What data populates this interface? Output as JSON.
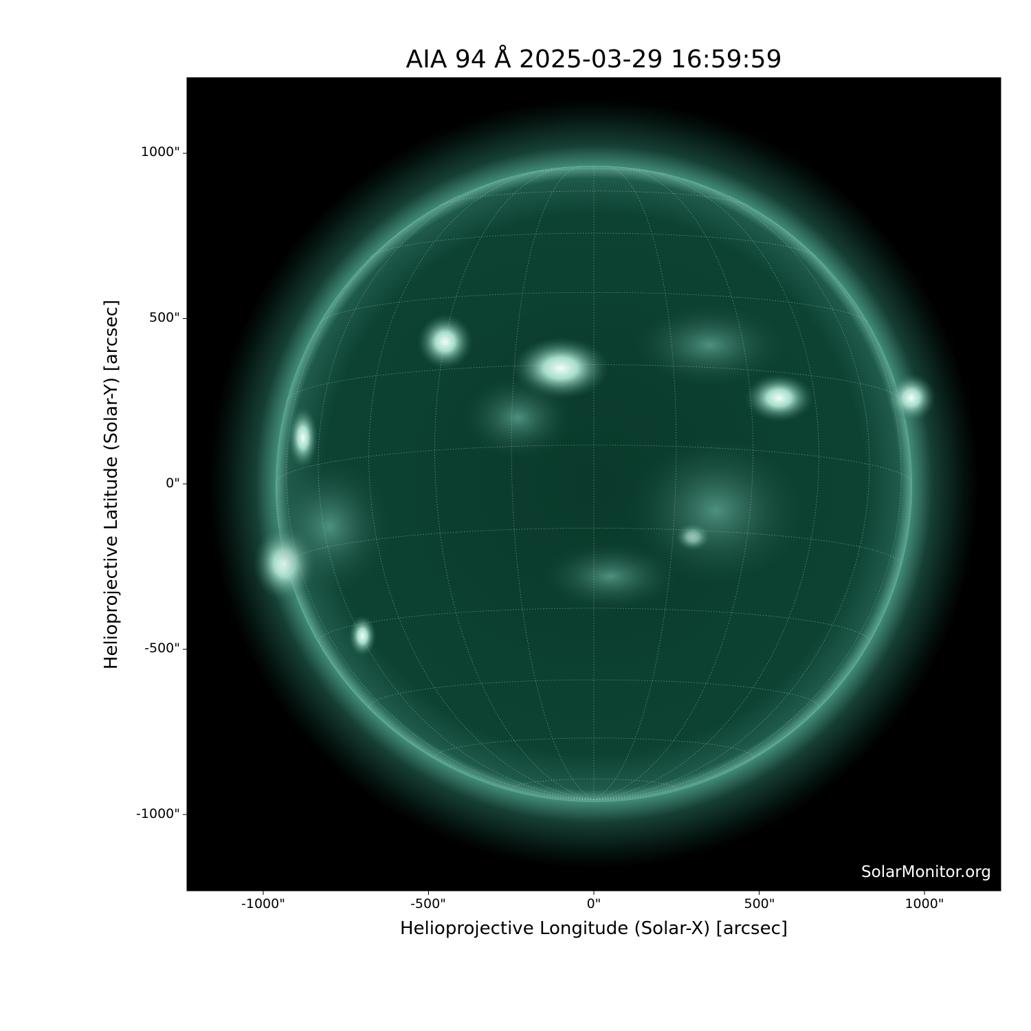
{
  "title": "AIA 94 Å 2025-03-29 16:59:59",
  "instrument": "AIA",
  "wavelength": "94 Å",
  "timestamp": "2025-03-29 16:59:59",
  "xlabel": "Helioprojective Longitude (Solar-X) [arcsec]",
  "ylabel": "Helioprojective Latitude (Solar-Y) [arcsec]",
  "xticks": [
    "-1000\"",
    "-500\"",
    "0\"",
    "500\"",
    "1000\""
  ],
  "yticks": [
    "1000\"",
    "500\"",
    "0\"",
    "-500\"",
    "-1000\""
  ],
  "credit": "SolarMonitor.org",
  "colors": {
    "background": "#000000",
    "disk": "#0a3a2b",
    "limb": "#4f9c88",
    "bright": "#e8fff6",
    "grid": "#b8d8cc"
  }
}
